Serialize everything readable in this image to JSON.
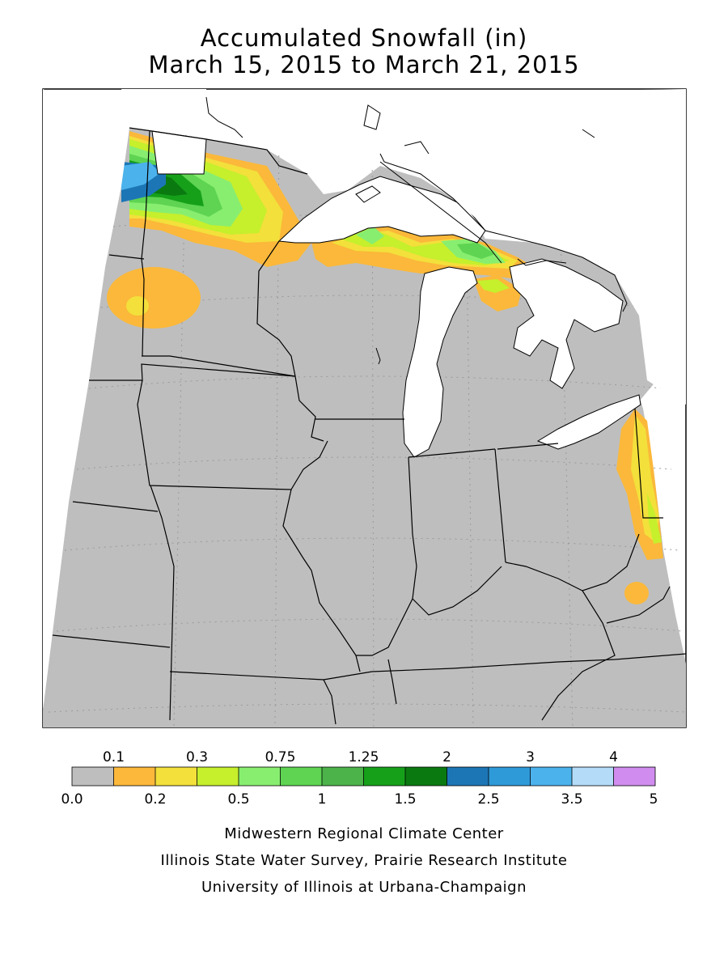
{
  "title": "Accumulated Snowfall (in)",
  "subtitle": "March 15, 2015 to March 21, 2015",
  "legend": {
    "top_labels": [
      "0.1",
      "0.3",
      "0.75",
      "1.25",
      "2",
      "3",
      "4"
    ],
    "bottom_labels": [
      "0.0",
      "0.2",
      "0.5",
      "1",
      "1.5",
      "2.5",
      "3.5",
      "5"
    ],
    "colors": [
      "#bebebe",
      "#fbb83a",
      "#f3e03b",
      "#c6ef2c",
      "#88ee70",
      "#5ed452",
      "#4cb34a",
      "#16a01a",
      "#0a7a10",
      "#1c76b5",
      "#2f9ad8",
      "#4bb2ec",
      "#b4dcf8",
      "#d08cee"
    ]
  },
  "credits": [
    "Midwestern Regional Climate Center",
    "Illinois State Water Survey, Prairie Research Institute",
    "University of Illinois at Urbana-Champaign"
  ],
  "map_colors": {
    "background_no_snow": "#bebebe",
    "water": "#ffffff",
    "borders": "#000000",
    "gridlines": "#9a9a9a"
  }
}
